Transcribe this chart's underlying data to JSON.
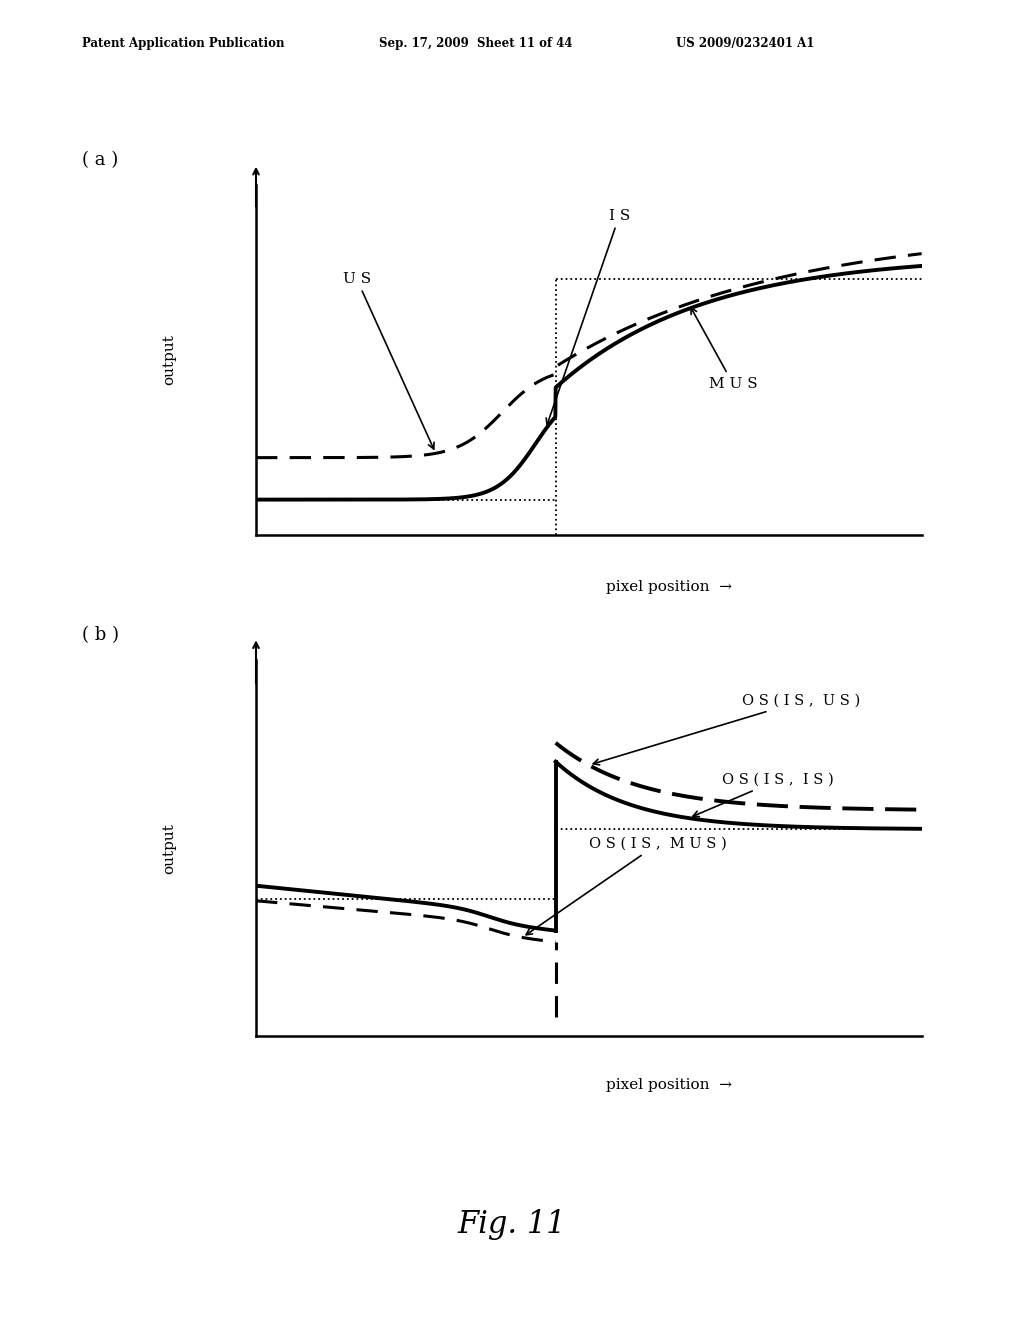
{
  "header_left": "Patent Application Publication",
  "header_mid": "Sep. 17, 2009  Sheet 11 of 44",
  "header_right": "US 2009/0232401 A1",
  "fig_label": "Fig. 11",
  "panel_a_label": "( a )",
  "panel_b_label": "( b )",
  "xlabel": "pixel position",
  "ylabel": "output",
  "background": "#ffffff"
}
